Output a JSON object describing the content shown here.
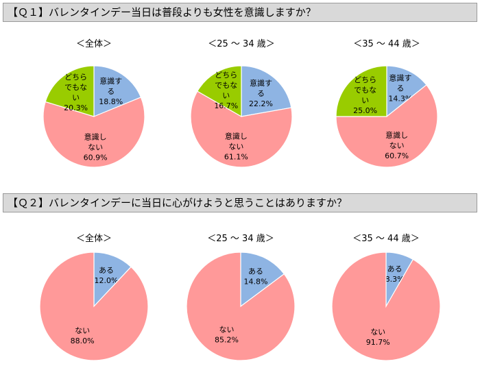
{
  "colors": {
    "blue": "#8eb4e3",
    "pink": "#ff9999",
    "green": "#99cc00",
    "bar_bg": "#d9d9d9"
  },
  "questions": [
    {
      "title": "【Ｑ１】バレンタインデー当日は普段よりも女性を意識しますか？"
    },
    {
      "title": "【Ｑ２】バレンタインデーに当日に心がけようと思うことはありますか？"
    }
  ],
  "chart_data": [
    {
      "type": "pie",
      "question": "Q1",
      "title": "＜全体＞",
      "slices": [
        {
          "label": "意識する",
          "value": 18.8,
          "value_label": "18.8%",
          "color": "#8eb4e3"
        },
        {
          "label": "意識しない",
          "value": 60.9,
          "value_label": "60.9%",
          "color": "#ff9999"
        },
        {
          "label": "どちらでもない",
          "value": 20.3,
          "value_label": "20.3%",
          "color": "#99cc00"
        }
      ]
    },
    {
      "type": "pie",
      "question": "Q1",
      "title": "＜25 ～ 34 歳＞",
      "slices": [
        {
          "label": "意識する",
          "value": 22.2,
          "value_label": "22.2%",
          "color": "#8eb4e3"
        },
        {
          "label": "意識しない",
          "value": 61.1,
          "value_label": "61.1%",
          "color": "#ff9999"
        },
        {
          "label": "どちらでもない",
          "value": 16.7,
          "value_label": "16.7%",
          "color": "#99cc00"
        }
      ]
    },
    {
      "type": "pie",
      "question": "Q1",
      "title": "＜35 ～ 44 歳＞",
      "slices": [
        {
          "label": "意識する",
          "value": 14.3,
          "value_label": "14.3%",
          "color": "#8eb4e3"
        },
        {
          "label": "意識しない",
          "value": 60.7,
          "value_label": "60.7%",
          "color": "#ff9999"
        },
        {
          "label": "どちらでもない",
          "value": 25.0,
          "value_label": "25.0%",
          "color": "#99cc00"
        }
      ]
    },
    {
      "type": "pie",
      "question": "Q2",
      "title": "＜全体＞",
      "slices": [
        {
          "label": "ある",
          "value": 12.0,
          "value_label": "12.0%",
          "color": "#8eb4e3"
        },
        {
          "label": "ない",
          "value": 88.0,
          "value_label": "88.0%",
          "color": "#ff9999"
        }
      ]
    },
    {
      "type": "pie",
      "question": "Q2",
      "title": "＜25 ～ 34 歳＞",
      "slices": [
        {
          "label": "ある",
          "value": 14.8,
          "value_label": "14.8%",
          "color": "#8eb4e3"
        },
        {
          "label": "ない",
          "value": 85.2,
          "value_label": "85.2%",
          "color": "#ff9999"
        }
      ]
    },
    {
      "type": "pie",
      "question": "Q2",
      "title": "＜35 ～ 44 歳＞",
      "slices": [
        {
          "label": "ある",
          "value": 8.3,
          "value_label": "8.3%",
          "color": "#8eb4e3"
        },
        {
          "label": "ない",
          "value": 91.7,
          "value_label": "91.7%",
          "color": "#ff9999"
        }
      ]
    }
  ]
}
